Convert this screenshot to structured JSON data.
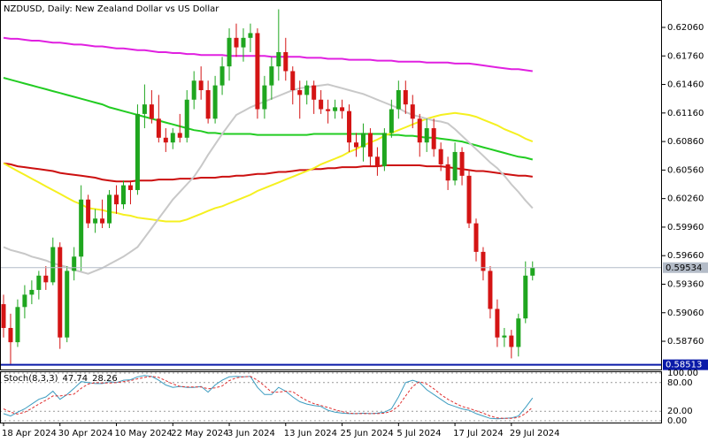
{
  "chart_data": [
    {
      "type": "candlestick",
      "title": "NZDUSD, Daily:  New Zealand Dollar vs US Dollar",
      "categories": [
        "18 Apr 2024",
        null,
        null,
        null,
        null,
        null,
        null,
        null,
        "30 Apr 2024",
        null,
        null,
        null,
        null,
        null,
        null,
        null,
        "10 May 2024",
        null,
        null,
        null,
        null,
        null,
        null,
        null,
        "22 May 2024",
        null,
        null,
        null,
        null,
        null,
        null,
        null,
        "3 Jun 2024",
        null,
        null,
        null,
        null,
        null,
        null,
        null,
        "13 Jun 2024",
        null,
        null,
        null,
        null,
        null,
        null,
        null,
        "25 Jun 2024",
        null,
        null,
        null,
        null,
        null,
        null,
        null,
        "5 Jul 2024",
        null,
        null,
        null,
        null,
        null,
        null,
        null,
        "17 Jul 2024",
        null,
        null,
        null,
        null,
        null,
        null,
        null,
        "29 Jul 2024",
        null,
        null,
        null
      ],
      "open": [
        0.5915,
        0.589,
        0.5875,
        0.5912,
        0.5925,
        0.593,
        0.5945,
        0.5938,
        0.5975,
        0.588,
        0.595,
        0.5965,
        0.6025,
        0.6,
        0.6005,
        0.6,
        0.603,
        0.602,
        0.604,
        0.6035,
        0.6115,
        0.6125,
        0.611,
        0.609,
        0.6085,
        0.6095,
        0.609,
        0.613,
        0.615,
        0.614,
        0.611,
        0.6145,
        0.6165,
        0.6195,
        0.6185,
        0.6195,
        0.62,
        0.612,
        0.6145,
        0.6165,
        0.618,
        0.616,
        0.614,
        0.6135,
        0.6145,
        0.613,
        0.612,
        0.6118,
        0.6122,
        0.6118,
        0.6085,
        0.608,
        0.6095,
        0.607,
        0.606,
        0.6095,
        0.612,
        0.614,
        0.6125,
        0.611,
        0.6085,
        0.61,
        0.6078,
        0.6062,
        0.6045,
        0.6075,
        0.605,
        0.6,
        0.597,
        0.595,
        0.591,
        0.588,
        0.5882,
        0.587,
        0.59,
        0.5945
      ],
      "high": [
        0.5925,
        0.5905,
        0.592,
        0.5935,
        0.594,
        0.595,
        0.5955,
        0.5985,
        0.598,
        0.5955,
        0.5975,
        0.604,
        0.603,
        0.6015,
        0.6025,
        0.6035,
        0.604,
        0.6045,
        0.6045,
        0.6125,
        0.6146,
        0.614,
        0.6135,
        0.61,
        0.61,
        0.6115,
        0.614,
        0.616,
        0.6165,
        0.615,
        0.6155,
        0.6175,
        0.6205,
        0.621,
        0.6205,
        0.621,
        0.6205,
        0.6155,
        0.6175,
        0.6225,
        0.6195,
        0.6165,
        0.615,
        0.615,
        0.615,
        0.614,
        0.613,
        0.613,
        0.613,
        0.6125,
        0.6095,
        0.6105,
        0.61,
        0.608,
        0.61,
        0.613,
        0.615,
        0.615,
        0.6135,
        0.6115,
        0.611,
        0.611,
        0.6085,
        0.607,
        0.6085,
        0.608,
        0.6055,
        0.6005,
        0.5975,
        0.5955,
        0.592,
        0.589,
        0.5888,
        0.5905,
        0.596,
        0.596
      ],
      "low": [
        0.588,
        0.5852,
        0.587,
        0.59,
        0.5915,
        0.592,
        0.593,
        0.5935,
        0.5868,
        0.5875,
        0.594,
        0.595,
        0.5995,
        0.599,
        0.5995,
        0.5995,
        0.601,
        0.6015,
        0.602,
        0.603,
        0.61,
        0.6105,
        0.6085,
        0.6075,
        0.6078,
        0.6085,
        0.6085,
        0.612,
        0.613,
        0.6105,
        0.6105,
        0.6135,
        0.615,
        0.6175,
        0.617,
        0.618,
        0.611,
        0.611,
        0.613,
        0.615,
        0.615,
        0.6125,
        0.611,
        0.6125,
        0.6115,
        0.6115,
        0.6105,
        0.611,
        0.611,
        0.6075,
        0.607,
        0.6065,
        0.606,
        0.605,
        0.6055,
        0.609,
        0.611,
        0.6115,
        0.61,
        0.607,
        0.6075,
        0.607,
        0.6055,
        0.6035,
        0.604,
        0.604,
        0.5995,
        0.596,
        0.594,
        0.59,
        0.587,
        0.587,
        0.5858,
        0.586,
        0.5895,
        0.594
      ],
      "close": [
        0.589,
        0.5875,
        0.5912,
        0.5925,
        0.593,
        0.5945,
        0.5938,
        0.5975,
        0.588,
        0.595,
        0.5965,
        0.6025,
        0.6,
        0.6005,
        0.6,
        0.603,
        0.602,
        0.604,
        0.6035,
        0.6115,
        0.6125,
        0.611,
        0.609,
        0.6085,
        0.6095,
        0.609,
        0.613,
        0.615,
        0.614,
        0.611,
        0.6145,
        0.6165,
        0.6195,
        0.6185,
        0.6195,
        0.62,
        0.612,
        0.6145,
        0.6165,
        0.618,
        0.616,
        0.614,
        0.6135,
        0.6145,
        0.613,
        0.612,
        0.6118,
        0.6122,
        0.6118,
        0.6085,
        0.608,
        0.6095,
        0.607,
        0.606,
        0.6095,
        0.612,
        0.614,
        0.6125,
        0.611,
        0.6085,
        0.61,
        0.6078,
        0.6062,
        0.6045,
        0.6075,
        0.605,
        0.6,
        0.597,
        0.595,
        0.591,
        0.588,
        0.5882,
        0.587,
        0.59,
        0.5945,
        0.59534
      ],
      "up_color": "#1fa61f",
      "down_color": "#d41414",
      "lines": [
        {
          "color": "#e020e0",
          "values": [
            0.6195,
            0.6194,
            0.6194,
            0.6193,
            0.6192,
            0.6192,
            0.6191,
            0.619,
            0.619,
            0.6189,
            0.6188,
            0.6188,
            0.6187,
            0.6186,
            0.6186,
            0.6185,
            0.6184,
            0.6184,
            0.6183,
            0.6182,
            0.6182,
            0.6181,
            0.618,
            0.618,
            0.6179,
            0.6179,
            0.6178,
            0.6178,
            0.6177,
            0.6177,
            0.6177,
            0.6177,
            0.6176,
            0.6176,
            0.6176,
            0.6176,
            0.6176,
            0.6176,
            0.6175,
            0.6175,
            0.6175,
            0.6175,
            0.6175,
            0.6174,
            0.6174,
            0.6174,
            0.6173,
            0.6173,
            0.6173,
            0.6172,
            0.6172,
            0.6172,
            0.6172,
            0.6171,
            0.6171,
            0.6171,
            0.617,
            0.617,
            0.617,
            0.617,
            0.6169,
            0.6169,
            0.6169,
            0.6169,
            0.6168,
            0.6168,
            0.6168,
            0.6167,
            0.6166,
            0.6165,
            0.6164,
            0.6163,
            0.6162,
            0.6162,
            0.6161,
            0.616
          ]
        },
        {
          "color": "#22cc22",
          "values": [
            0.6153,
            0.6151,
            0.6149,
            0.6147,
            0.6145,
            0.6143,
            0.6141,
            0.6139,
            0.6137,
            0.6135,
            0.6133,
            0.6131,
            0.6129,
            0.6127,
            0.6125,
            0.6122,
            0.612,
            0.6118,
            0.6116,
            0.6114,
            0.6112,
            0.611,
            0.6108,
            0.6106,
            0.6104,
            0.6102,
            0.61,
            0.6098,
            0.6097,
            0.6095,
            0.6095,
            0.6094,
            0.6094,
            0.6094,
            0.6094,
            0.6094,
            0.6093,
            0.6093,
            0.6093,
            0.6093,
            0.6093,
            0.6093,
            0.6093,
            0.6093,
            0.6094,
            0.6094,
            0.6094,
            0.6094,
            0.6094,
            0.6094,
            0.6094,
            0.6094,
            0.6094,
            0.6094,
            0.6094,
            0.6093,
            0.6093,
            0.6092,
            0.6092,
            0.6091,
            0.609,
            0.609,
            0.6089,
            0.6088,
            0.6087,
            0.6086,
            0.6084,
            0.6082,
            0.608,
            0.6078,
            0.6076,
            0.6074,
            0.6072,
            0.607,
            0.6069,
            0.6067
          ]
        },
        {
          "color": "#cc1010",
          "values": [
            0.6063,
            0.6062,
            0.606,
            0.6059,
            0.6058,
            0.6057,
            0.6056,
            0.6055,
            0.6053,
            0.6052,
            0.6051,
            0.605,
            0.6049,
            0.6048,
            0.6046,
            0.6045,
            0.6044,
            0.6044,
            0.6044,
            0.6045,
            0.6045,
            0.6045,
            0.6046,
            0.6046,
            0.6046,
            0.6047,
            0.6047,
            0.6047,
            0.6048,
            0.6048,
            0.6048,
            0.6049,
            0.6049,
            0.605,
            0.605,
            0.6051,
            0.6052,
            0.6052,
            0.6053,
            0.6054,
            0.6054,
            0.6055,
            0.6056,
            0.6056,
            0.6057,
            0.6057,
            0.6058,
            0.6058,
            0.6059,
            0.6059,
            0.6059,
            0.606,
            0.606,
            0.606,
            0.6061,
            0.6061,
            0.6061,
            0.6061,
            0.6061,
            0.6061,
            0.606,
            0.606,
            0.606,
            0.6059,
            0.6058,
            0.6057,
            0.6056,
            0.6055,
            0.6055,
            0.6054,
            0.6053,
            0.6052,
            0.6051,
            0.605,
            0.605,
            0.6049
          ]
        },
        {
          "color": "#f5f020",
          "values": [
            0.6063,
            0.6059,
            0.6055,
            0.6051,
            0.6047,
            0.6043,
            0.6039,
            0.6035,
            0.6031,
            0.6027,
            0.6023,
            0.602,
            0.6016,
            0.6015,
            0.6014,
            0.6012,
            0.6011,
            0.6009,
            0.6008,
            0.6006,
            0.6005,
            0.6004,
            0.6003,
            0.6002,
            0.6002,
            0.6002,
            0.6004,
            0.6007,
            0.601,
            0.6013,
            0.6016,
            0.6018,
            0.6021,
            0.6024,
            0.6027,
            0.603,
            0.6034,
            0.6037,
            0.604,
            0.6043,
            0.6046,
            0.6049,
            0.6052,
            0.6055,
            0.6058,
            0.6062,
            0.6065,
            0.6068,
            0.6071,
            0.6075,
            0.6078,
            0.6082,
            0.6085,
            0.6088,
            0.6092,
            0.6095,
            0.6098,
            0.6101,
            0.6104,
            0.6107,
            0.611,
            0.6112,
            0.6114,
            0.6115,
            0.6116,
            0.6115,
            0.6114,
            0.6112,
            0.6109,
            0.6106,
            0.6103,
            0.6099,
            0.6096,
            0.6093,
            0.6089,
            0.6086
          ]
        },
        {
          "color": "#c8c8c8",
          "values": [
            0.5975,
            0.5972,
            0.597,
            0.5968,
            0.5965,
            0.5963,
            0.5961,
            0.5958,
            0.5956,
            0.5954,
            0.5951,
            0.5949,
            0.5947,
            0.595,
            0.5953,
            0.5957,
            0.5961,
            0.5965,
            0.597,
            0.5975,
            0.5985,
            0.5995,
            0.6005,
            0.6015,
            0.6025,
            0.6033,
            0.6041,
            0.6049,
            0.606,
            0.6072,
            0.6083,
            0.6094,
            0.6104,
            0.6114,
            0.6118,
            0.6122,
            0.6125,
            0.6128,
            0.6131,
            0.6134,
            0.6137,
            0.614,
            0.6142,
            0.6143,
            0.6144,
            0.6145,
            0.6146,
            0.6144,
            0.6142,
            0.614,
            0.6138,
            0.6136,
            0.6133,
            0.613,
            0.6127,
            0.6124,
            0.6121,
            0.6117,
            0.6114,
            0.6112,
            0.611,
            0.6108,
            0.6107,
            0.6105,
            0.6099,
            0.6092,
            0.6085,
            0.6078,
            0.6071,
            0.6064,
            0.6058,
            0.605,
            0.6041,
            0.6033,
            0.6024,
            0.6016
          ]
        }
      ],
      "ylim": [
        0.58463,
        0.62348
      ],
      "yticks": [
        {
          "value": 0.6206,
          "label": "0.62060"
        },
        {
          "value": 0.6176,
          "label": "0.61760"
        },
        {
          "value": 0.6146,
          "label": "0.61460"
        },
        {
          "value": 0.6116,
          "label": "0.61160"
        },
        {
          "value": 0.6086,
          "label": "0.60860"
        },
        {
          "value": 0.6056,
          "label": "0.60560"
        },
        {
          "value": 0.6026,
          "label": "0.60260"
        },
        {
          "value": 0.5996,
          "label": "0.59960"
        },
        {
          "value": 0.5966,
          "label": "0.59660"
        },
        {
          "value": 0.5936,
          "label": "0.59360"
        },
        {
          "value": 0.5906,
          "label": "0.59060"
        },
        {
          "value": 0.5876,
          "label": "0.58760"
        }
      ],
      "last_price": 0.59534,
      "last_price_color": "#b4bcc8",
      "level": 0.58513,
      "level_color": "#0a1aa8"
    },
    {
      "type": "line",
      "title": "Stoch(8,3,3)",
      "series": [
        {
          "color": "#3c9cc0",
          "values": [
            15,
            10,
            18,
            25,
            35,
            45,
            50,
            62,
            45,
            55,
            68,
            82,
            80,
            78,
            78,
            82,
            80,
            85,
            86,
            92,
            95,
            93,
            85,
            75,
            70,
            72,
            70,
            70,
            72,
            60,
            75,
            85,
            92,
            93,
            92,
            93,
            70,
            55,
            55,
            70,
            62,
            50,
            40,
            35,
            32,
            30,
            22,
            18,
            16,
            15,
            15,
            16,
            15,
            16,
            18,
            25,
            50,
            80,
            85,
            80,
            65,
            55,
            45,
            35,
            30,
            25,
            22,
            15,
            10,
            5,
            4,
            5,
            6,
            10,
            28,
            47.74
          ]
        },
        {
          "color": "#e03030",
          "dashed": true,
          "values": [
            25,
            18,
            14,
            18,
            26,
            35,
            43,
            52,
            52,
            54,
            56,
            68,
            77,
            80,
            79,
            79,
            80,
            82,
            84,
            88,
            91,
            93,
            91,
            84,
            77,
            72,
            71,
            71,
            71,
            67,
            69,
            73,
            84,
            90,
            92,
            93,
            85,
            73,
            60,
            60,
            62,
            61,
            51,
            42,
            36,
            32,
            28,
            23,
            19,
            16,
            15,
            15,
            15,
            15,
            16,
            20,
            31,
            52,
            72,
            82,
            77,
            67,
            55,
            45,
            37,
            30,
            26,
            21,
            16,
            10,
            6,
            5,
            5,
            7,
            15,
            28.26
          ]
        }
      ],
      "ylim": [
        -3.7,
        103.7
      ],
      "yticks": [
        {
          "value": 100,
          "label": "100.00"
        },
        {
          "value": 80,
          "label": "80.00"
        },
        {
          "value": 20,
          "label": "20.00"
        },
        {
          "value": 0,
          "label": "0.00"
        }
      ]
    }
  ]
}
